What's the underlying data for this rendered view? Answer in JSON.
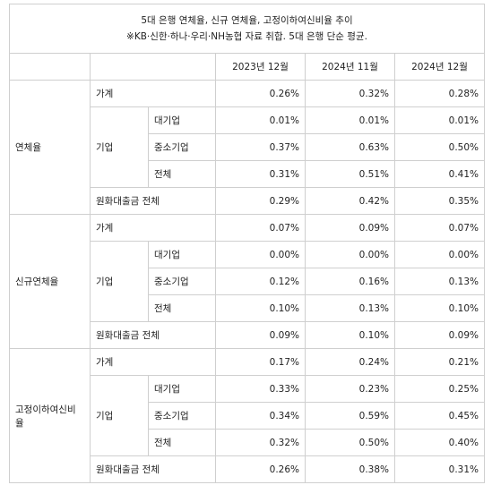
{
  "table": {
    "title": [
      "5대 은행 연체율, 신규 연체율, 고정이하여신비율 추이",
      "※KB·신한·하나·우리·NH농협 자료 취합. 5대 은행 단순 평균."
    ],
    "columns": [
      "2023년 12월",
      "2024년 11월",
      "2024년 12월"
    ],
    "groups": [
      {
        "name": "연체율",
        "household": {
          "label": "가계",
          "values": [
            "0.26%",
            "0.32%",
            "0.28%"
          ]
        },
        "corporate": {
          "label": "기업",
          "rows": [
            {
              "label": "대기업",
              "values": [
                "0.01%",
                "0.01%",
                "0.01%"
              ]
            },
            {
              "label": "중소기업",
              "values": [
                "0.37%",
                "0.63%",
                "0.50%"
              ]
            },
            {
              "label": "전체",
              "values": [
                "0.31%",
                "0.51%",
                "0.41%"
              ]
            }
          ]
        },
        "total": {
          "label": "원화대출금 전체",
          "values": [
            "0.29%",
            "0.42%",
            "0.35%"
          ]
        }
      },
      {
        "name": "신규연체율",
        "household": {
          "label": "가계",
          "values": [
            "0.07%",
            "0.09%",
            "0.07%"
          ]
        },
        "corporate": {
          "label": "기업",
          "rows": [
            {
              "label": "대기업",
              "values": [
                "0.00%",
                "0.00%",
                "0.00%"
              ]
            },
            {
              "label": "중소기업",
              "values": [
                "0.12%",
                "0.16%",
                "0.13%"
              ]
            },
            {
              "label": "전체",
              "values": [
                "0.10%",
                "0.13%",
                "0.10%"
              ]
            }
          ]
        },
        "total": {
          "label": "원화대출금 전체",
          "values": [
            "0.09%",
            "0.10%",
            "0.09%"
          ]
        }
      },
      {
        "name": "고정이하여신비율",
        "household": {
          "label": "가계",
          "values": [
            "0.17%",
            "0.24%",
            "0.21%"
          ]
        },
        "corporate": {
          "label": "기업",
          "rows": [
            {
              "label": "대기업",
              "values": [
                "0.33%",
                "0.23%",
                "0.25%"
              ]
            },
            {
              "label": "중소기업",
              "values": [
                "0.34%",
                "0.59%",
                "0.45%"
              ]
            },
            {
              "label": "전체",
              "values": [
                "0.32%",
                "0.50%",
                "0.40%"
              ]
            }
          ]
        },
        "total": {
          "label": "원화대출금 전체",
          "values": [
            "0.26%",
            "0.38%",
            "0.31%"
          ]
        }
      }
    ]
  }
}
